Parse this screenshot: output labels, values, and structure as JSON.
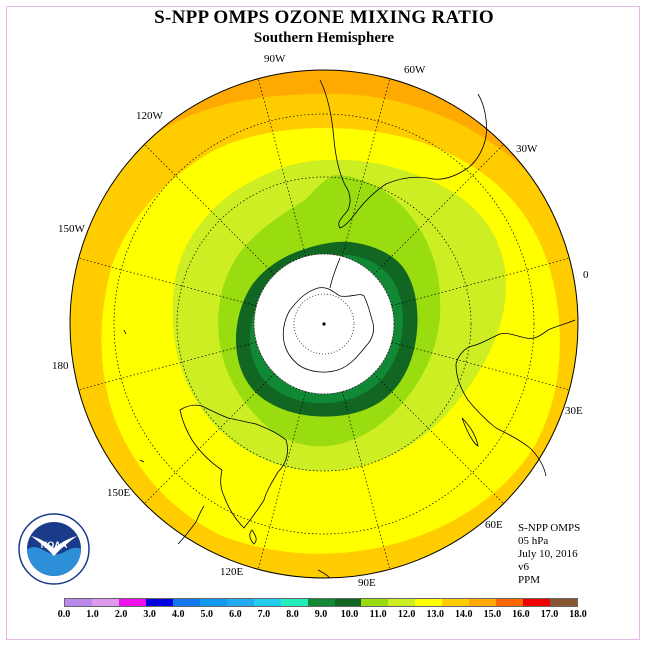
{
  "title": "S-NPP OMPS OZONE MIXING RATIO",
  "subtitle": "Southern Hemisphere",
  "info": {
    "instrument": "S-NPP OMPS",
    "level": "05 hPa",
    "date": "July 10, 2016",
    "version": "v6",
    "units": "PPM"
  },
  "longitude_labels": [
    "90W",
    "60W",
    "30W",
    "0",
    "30E",
    "60E",
    "90E",
    "120E",
    "150E",
    "180",
    "150W",
    "120W"
  ],
  "colorbar": {
    "labels": [
      "0.0",
      "1.0",
      "2.0",
      "3.0",
      "4.0",
      "5.0",
      "6.0",
      "7.0",
      "8.0",
      "9.0",
      "10.0",
      "11.0",
      "12.0",
      "13.0",
      "14.0",
      "15.0",
      "16.0",
      "17.0",
      "18.0"
    ],
    "colors": [
      "#bb88ee",
      "#dd99ee",
      "#ee11ee",
      "#0000dd",
      "#1177ee",
      "#1199ee",
      "#22aaee",
      "#22ccee",
      "#22eebb",
      "#118833",
      "#116622",
      "#99dd11",
      "#ccee22",
      "#ffff00",
      "#ffcc00",
      "#ffaa00",
      "#ff6600",
      "#ee0000",
      "#885533"
    ]
  },
  "map_colors": {
    "band_15": "#ffaa00",
    "band_14": "#ffcc00",
    "band_13": "#ffff00",
    "band_12": "#ccee22",
    "band_11": "#99dd11",
    "band_10": "#116622",
    "band_9": "#118833",
    "no_data": "#ffffff"
  },
  "logo": {
    "text": "NOAA",
    "ring_text": "NATIONAL OCEANIC AND ATMOSPHERIC ADMINISTRATION",
    "ring_text_bottom": "U.S. DEPARTMENT OF COMMERCE"
  }
}
